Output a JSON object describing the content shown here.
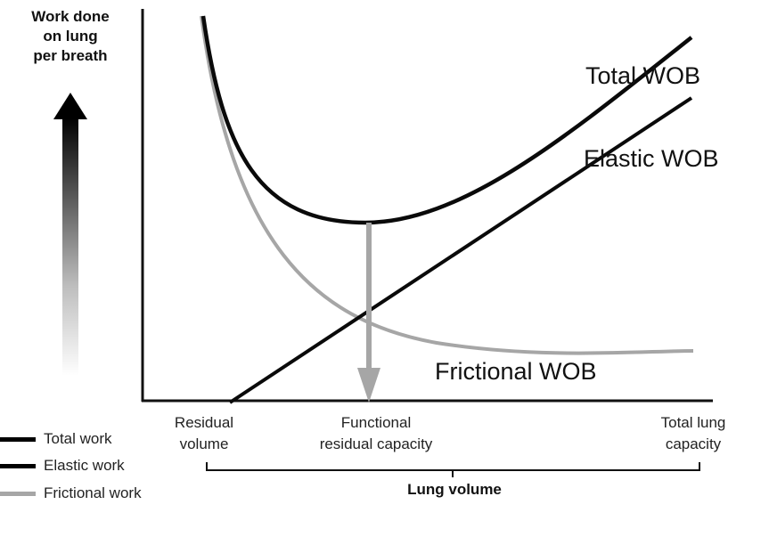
{
  "y_axis_label": "Work done\non lung\nper breath",
  "curve_labels": {
    "total": "Total WOB",
    "elastic": "Elastic WOB",
    "frictional": "Frictional WOB"
  },
  "x_ticks": {
    "residual": "Residual\nvolume",
    "frc": "Functional\nresidual capacity",
    "tlc": "Total lung\ncapacity"
  },
  "x_axis_title": "Lung volume",
  "legend": [
    {
      "label": "Total work",
      "color": "#000000"
    },
    {
      "label": "Elastic work",
      "color": "#000000"
    },
    {
      "label": "Frictional work",
      "color": "#a6a6a6"
    }
  ],
  "colors": {
    "total": "#0a0a0a",
    "elastic": "#0a0a0a",
    "frictional": "#a6a6a6",
    "arrow": "#a6a6a6",
    "axis": "#111111"
  }
}
